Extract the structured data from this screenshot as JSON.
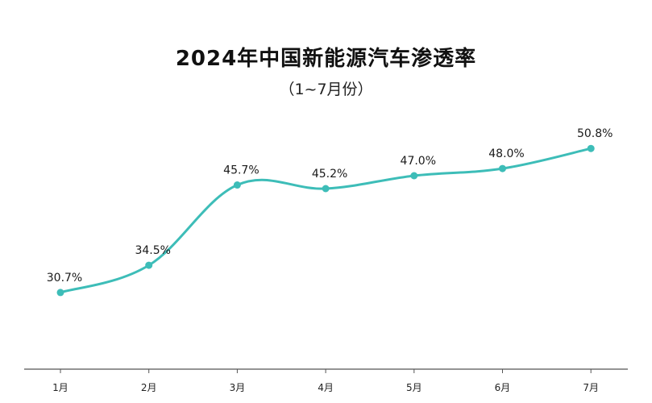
{
  "chart_data": {
    "type": "line",
    "title": "2024年中国新能源汽车渗透率",
    "subtitle": "（1~7月份）",
    "categories": [
      "1月",
      "2月",
      "3月",
      "4月",
      "5月",
      "6月",
      "7月"
    ],
    "series": [
      {
        "values": [
          30.7,
          34.5,
          45.7,
          45.2,
          47.0,
          48.0,
          50.8
        ],
        "labels": [
          "30.7%",
          "34.5%",
          "45.7%",
          "45.2%",
          "47.0%",
          "48.0%",
          "50.8%"
        ]
      }
    ],
    "ylim": [
      20,
      56
    ],
    "grid": false,
    "colors": {
      "line": "#3dbdb8",
      "axis": "#555555"
    }
  }
}
